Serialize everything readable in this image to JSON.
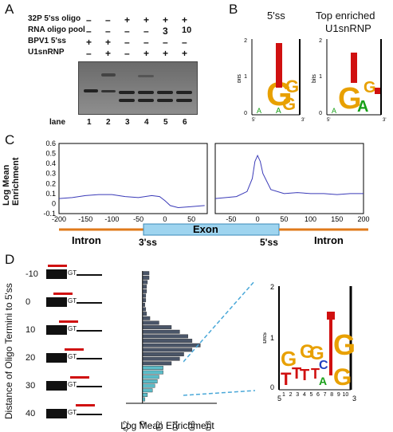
{
  "panels": {
    "a": "A",
    "b": "B",
    "c": "C",
    "d": "D"
  },
  "panel_a": {
    "rows": [
      {
        "label": "32P 5'ss oligo",
        "marks": [
          "–",
          "–",
          "+",
          "+",
          "+",
          "+"
        ]
      },
      {
        "label": "RNA oligo pool",
        "marks": [
          "–",
          "–",
          "–",
          "–",
          "3",
          "10"
        ]
      },
      {
        "label": "BPV1 5'ss",
        "marks": [
          "+",
          "+",
          "–",
          "–",
          "–",
          "–"
        ]
      },
      {
        "label": "U1snRNP",
        "marks": [
          "–",
          "+",
          "–",
          "+",
          "+",
          "+"
        ]
      }
    ],
    "lane_label": "lane",
    "lanes": [
      "1",
      "2",
      "3",
      "4",
      "5",
      "6"
    ]
  },
  "panel_b": {
    "left_title": "5'ss",
    "right_title_line1": "Top enriched",
    "right_title_line2": "U1snRNP",
    "yaxis_label": "bits",
    "ytick_top": "2",
    "ytick_mid": "1",
    "ytick_bottom": "0",
    "x_start": "5'",
    "x_end": "3'",
    "left_positions": [
      "1",
      "2",
      "3",
      "4",
      "5",
      "6",
      "7",
      "8",
      "9"
    ],
    "right_positions": [
      "1",
      "2",
      "3",
      "4",
      "5",
      "6",
      "7",
      "8",
      "9"
    ]
  },
  "panel_c": {
    "ylabel_line1": "Log Mean",
    "ylabel_line2": "Enrichment",
    "yticks": [
      "0.6",
      "0.5",
      "0.4",
      "0.3",
      "0.2",
      "0.1",
      "0",
      "-0.1"
    ],
    "left_xticks": [
      "-200",
      "-150",
      "-100",
      "-50",
      "0",
      "50"
    ],
    "right_xticks": [
      "-50",
      "0",
      "50",
      "100",
      "150",
      "200"
    ],
    "region_intron_left": "Intron",
    "region_exon": "Exon",
    "region_intron_right": "Intron",
    "label_3ss": "3'ss",
    "label_5ss": "5'ss"
  },
  "panel_d": {
    "ylabel": "Distance of Oligo Termini to 5'ss",
    "row_ticks": [
      "-10",
      "0",
      "10",
      "20",
      "30",
      "40"
    ],
    "gt_label": "GT",
    "xlabel": "Log Mean Enrichment",
    "xticks": [
      "-0.2",
      "0",
      "0.2",
      "0.4",
      "0.6",
      "0.8"
    ],
    "logo_ylabel": "bits",
    "logo_ytick_top": "2",
    "logo_ytick_mid": "1",
    "logo_ytick_bottom": "0",
    "logo_x_start": "5",
    "logo_x_end": "3",
    "logo_positions": [
      "1",
      "2",
      "3",
      "4",
      "5",
      "6",
      "7",
      "8",
      "9",
      "10"
    ]
  },
  "chart_data": [
    {
      "type": "line",
      "panel": "C-left",
      "x": [
        -200,
        -175,
        -150,
        -125,
        -100,
        -75,
        -50,
        -25,
        -10,
        0,
        10,
        25,
        50,
        75
      ],
      "y": [
        0.05,
        0.06,
        0.08,
        0.09,
        0.09,
        0.07,
        0.06,
        0.08,
        0.07,
        0.03,
        -0.02,
        -0.04,
        -0.03,
        -0.02
      ],
      "ylim": [
        -0.1,
        0.6
      ],
      "xlim": [
        -200,
        80
      ]
    },
    {
      "type": "line",
      "panel": "C-right",
      "x": [
        -80,
        -60,
        -40,
        -20,
        -10,
        -5,
        0,
        5,
        10,
        25,
        50,
        75,
        100,
        125,
        150,
        175,
        200
      ],
      "y": [
        0.05,
        0.06,
        0.07,
        0.12,
        0.25,
        0.42,
        0.48,
        0.42,
        0.3,
        0.14,
        0.1,
        0.11,
        0.1,
        0.1,
        0.09,
        0.1,
        0.1
      ],
      "ylim": [
        -0.1,
        0.6
      ],
      "xlim": [
        -80,
        200
      ]
    },
    {
      "type": "bar",
      "panel": "D",
      "orientation": "horizontal",
      "categories": [
        "-14",
        "-12",
        "-10",
        "-8",
        "-6",
        "-4",
        "-2",
        "0",
        "2",
        "4",
        "6",
        "8",
        "10",
        "12",
        "14",
        "16",
        "18",
        "20",
        "22",
        "24",
        "26",
        "28",
        "30",
        "32",
        "34",
        "36",
        "38",
        "40",
        "42"
      ],
      "values": [
        0.08,
        0.08,
        0.06,
        0.05,
        0.05,
        0.04,
        0.04,
        0.03,
        0.04,
        0.05,
        0.09,
        0.2,
        0.35,
        0.45,
        0.55,
        0.6,
        0.7,
        0.6,
        0.5,
        0.45,
        0.35,
        0.25,
        0.25,
        0.2,
        0.18,
        0.15,
        0.12,
        0.06,
        0.03
      ],
      "highlight_from_index": 21,
      "xlim": [
        -0.2,
        0.9
      ]
    }
  ]
}
